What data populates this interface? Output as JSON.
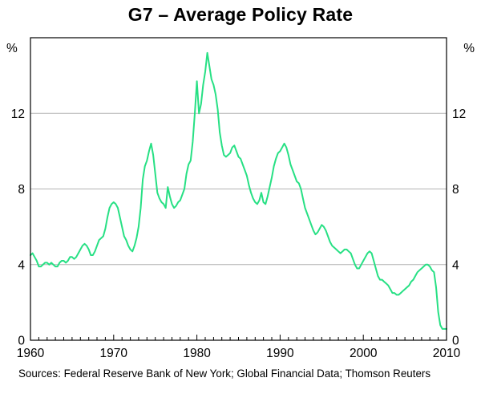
{
  "page": {
    "sources": "Sources: Federal Reserve Bank of New York; Global Financial Data; Thomson Reuters"
  },
  "chart_data": {
    "type": "line",
    "title": "G7 – Average Policy Rate",
    "ylabel": "%",
    "unit_left": "%",
    "unit_right": "%",
    "xlim": [
      1960,
      2010
    ],
    "ylim": [
      0,
      16
    ],
    "yticks": [
      0,
      4,
      8,
      12
    ],
    "xticks": [
      1960,
      1970,
      1980,
      1990,
      2000,
      2010
    ],
    "gridlines": [
      4,
      8,
      12
    ],
    "grid_on": true,
    "legend": "none",
    "grid_color": "#b3b3b3",
    "line_color": "#27e084",
    "series": [
      {
        "name": "G7 average policy rate",
        "x_start": 1960,
        "x_step": 0.25,
        "values": [
          4.5,
          4.6,
          4.4,
          4.2,
          3.9,
          3.9,
          4.0,
          4.1,
          4.1,
          4.0,
          4.1,
          4.0,
          3.9,
          3.9,
          4.1,
          4.2,
          4.2,
          4.1,
          4.2,
          4.4,
          4.4,
          4.3,
          4.4,
          4.6,
          4.8,
          5.0,
          5.1,
          5.0,
          4.8,
          4.5,
          4.5,
          4.7,
          5.0,
          5.3,
          5.4,
          5.5,
          5.9,
          6.5,
          7.0,
          7.2,
          7.3,
          7.2,
          7.0,
          6.5,
          6.0,
          5.5,
          5.3,
          5.0,
          4.8,
          4.7,
          5.0,
          5.4,
          6.0,
          7.0,
          8.5,
          9.2,
          9.5,
          10.0,
          10.4,
          9.8,
          8.8,
          7.8,
          7.5,
          7.3,
          7.2,
          7.0,
          8.1,
          7.6,
          7.2,
          7.0,
          7.1,
          7.3,
          7.4,
          7.7,
          8.0,
          8.8,
          9.3,
          9.5,
          10.5,
          12.0,
          13.7,
          12.0,
          12.5,
          13.5,
          14.2,
          15.2,
          14.5,
          13.8,
          13.5,
          13.0,
          12.2,
          11.0,
          10.3,
          9.8,
          9.7,
          9.8,
          9.9,
          10.2,
          10.3,
          10.0,
          9.7,
          9.6,
          9.3,
          9.0,
          8.7,
          8.2,
          7.8,
          7.5,
          7.3,
          7.2,
          7.4,
          7.8,
          7.3,
          7.2,
          7.6,
          8.1,
          8.6,
          9.2,
          9.6,
          9.9,
          10.0,
          10.2,
          10.4,
          10.2,
          9.8,
          9.3,
          9.0,
          8.7,
          8.4,
          8.3,
          8.0,
          7.5,
          7.0,
          6.7,
          6.4,
          6.1,
          5.8,
          5.6,
          5.7,
          5.9,
          6.1,
          6.0,
          5.8,
          5.5,
          5.2,
          5.0,
          4.9,
          4.8,
          4.7,
          4.6,
          4.7,
          4.8,
          4.8,
          4.7,
          4.6,
          4.3,
          4.0,
          3.8,
          3.8,
          4.0,
          4.2,
          4.4,
          4.6,
          4.7,
          4.6,
          4.2,
          3.8,
          3.4,
          3.2,
          3.2,
          3.1,
          3.0,
          2.9,
          2.7,
          2.5,
          2.5,
          2.4,
          2.4,
          2.5,
          2.6,
          2.7,
          2.8,
          2.9,
          3.1,
          3.2,
          3.4,
          3.6,
          3.7,
          3.8,
          3.9,
          4.0,
          4.0,
          3.9,
          3.7,
          3.6,
          2.8,
          1.5,
          0.8,
          0.6,
          0.6,
          0.6
        ]
      }
    ]
  }
}
